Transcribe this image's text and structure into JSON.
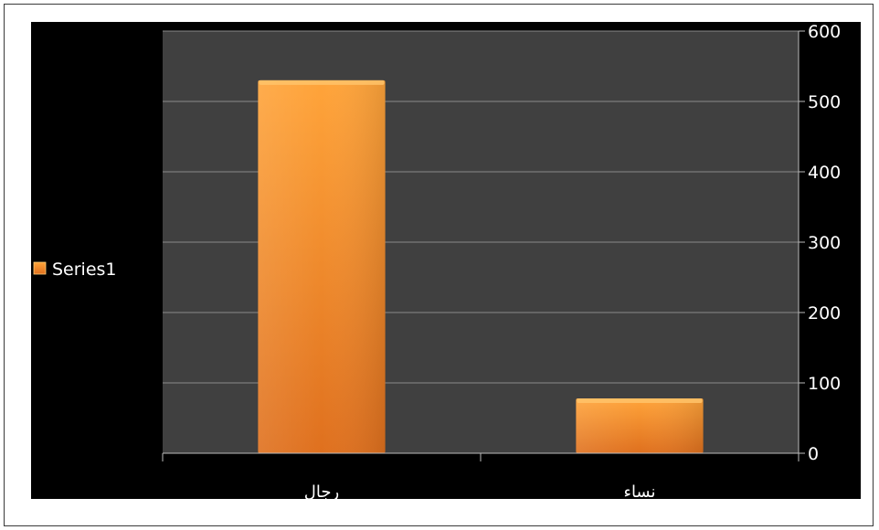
{
  "chart_data": {
    "type": "bar",
    "categories": [
      "رجال",
      "نساء"
    ],
    "series": [
      {
        "name": "Series1",
        "values": [
          530,
          78
        ]
      }
    ],
    "title": "",
    "xlabel": "",
    "ylabel": "",
    "ylim": [
      0,
      600
    ],
    "yticks": [
      "0",
      "100",
      "200",
      "300",
      "400",
      "500",
      "600"
    ],
    "y_axis_side": "right",
    "grid": true,
    "legend_position": "left",
    "colors": {
      "bar_top": "#ffa43a",
      "bar_bottom": "#df701e",
      "plot_background": "#404040",
      "chart_background": "#000000",
      "gridline": "#8a8a8a",
      "text": "#ffffff"
    }
  }
}
